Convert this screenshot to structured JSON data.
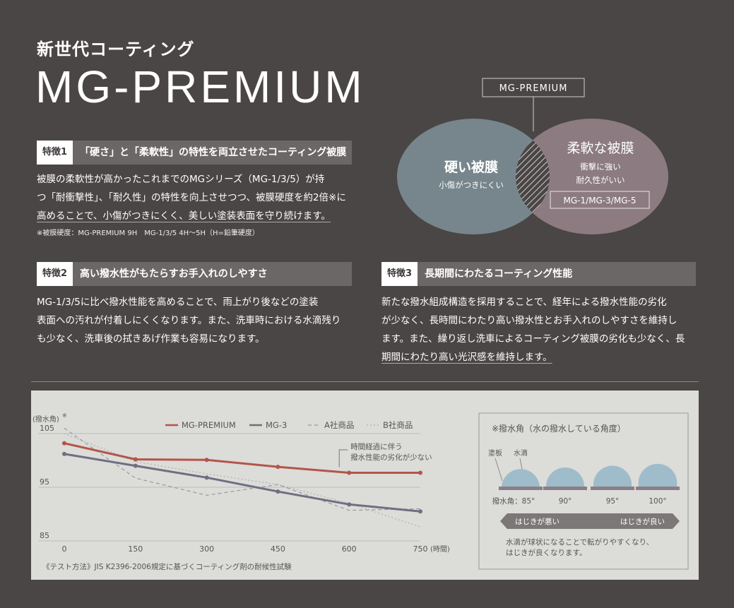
{
  "header": {
    "subtitle": "新世代コーティング",
    "brand": "MG-PREMIUM"
  },
  "features": [
    {
      "tag": "特徴1",
      "title": "「硬さ」と「柔軟性」の特性を両立させたコーティング被膜",
      "lines": [
        "被膜の柔軟性が高かったこれまでのMGシリーズ（MG-1/3/5）が持",
        "つ「耐衝撃性」、「耐久性」の特性を向上させつつ、被膜硬度を約2倍※に",
        "高めることで、小傷がつきにくく、美しい塗装表面を守り続けます。"
      ],
      "note": "※被膜硬度：MG-PREMIUM 9H　MG-1/3/5  4H〜5H（H=鉛筆硬度）"
    },
    {
      "tag": "特徴2",
      "title": "高い撥水性がもたらすお手入れのしやすさ",
      "lines": [
        "MG-1/3/5に比べ撥水性能を高めることで、雨上がり後などの塗装",
        "表面への汚れが付着しにくくなります。また、洗車時における水滴残り",
        "も少なく、洗車後の拭きあげ作業も容易になります。"
      ]
    },
    {
      "tag": "特徴3",
      "title": "長期間にわたるコーティング性能",
      "lines": [
        "新たな撥水組成構造を採用することで、経年による撥水性能の劣化",
        "が少なく、長時間にわたり高い撥水性とお手入れのしやすさを維持し",
        "ます。また、繰り返し洗車によるコーティング被膜の劣化も少なく、長",
        "期間にわたり高い光沢感を維持します。"
      ]
    }
  ],
  "diagram": {
    "label": "MG-PREMIUM",
    "hard": {
      "title": "硬い被膜",
      "sub": "小傷がつきにくい",
      "color": "#77868c"
    },
    "soft": {
      "title": "柔軟な被膜",
      "sub1": "衝撃に強い",
      "sub2": "耐久性がいい",
      "box": "MG-1/MG-3/MG-5",
      "color": "#8c7b80"
    }
  },
  "chart_data": {
    "type": "line",
    "ylabel": "(撥水角)",
    "ylabel_mark": "※",
    "xunit": "(時間)",
    "x": [
      0,
      150,
      300,
      450,
      600,
      750
    ],
    "xlim": [
      0,
      750
    ],
    "ylim": [
      85,
      105
    ],
    "yticks": [
      85,
      95,
      105
    ],
    "series": [
      {
        "name": "MG-PREMIUM",
        "color": "#b3554a",
        "style": "solid",
        "points": [
          [
            0,
            103.2
          ],
          [
            150,
            100.2
          ],
          [
            300,
            100.1
          ],
          [
            450,
            98.8
          ],
          [
            600,
            97.7
          ],
          [
            750,
            97.7
          ]
        ]
      },
      {
        "name": "MG-3",
        "color": "#6e6f80",
        "style": "solid",
        "points": [
          [
            0,
            101.2
          ],
          [
            150,
            99.0
          ],
          [
            300,
            96.8
          ],
          [
            450,
            94.2
          ],
          [
            600,
            91.8
          ],
          [
            750,
            90.5
          ]
        ]
      },
      {
        "name": "A社商品",
        "color": "#999999",
        "style": "dashed",
        "points": [
          [
            0,
            106
          ],
          [
            150,
            96.7
          ],
          [
            300,
            93.5
          ],
          [
            450,
            95.5
          ],
          [
            600,
            90.7
          ],
          [
            750,
            91.0
          ]
        ]
      },
      {
        "name": "B社商品",
        "color": "#b0b0b0",
        "style": "dotted",
        "points": [
          [
            0,
            105
          ],
          [
            150,
            99.8
          ],
          [
            300,
            97.5
          ],
          [
            450,
            95.5
          ],
          [
            600,
            92.0
          ],
          [
            750,
            87.6
          ]
        ]
      }
    ],
    "annotation": [
      "時間経過に伴う",
      "撥水性能の劣化が少ない"
    ],
    "method": "《テスト方法》JIS K2396-2006規定に基づくコーティング剤の耐候性試験"
  },
  "contact_angle": {
    "title": "※撥水角（水の撥水している角度）",
    "label_board": "塗板",
    "label_drop": "水滴",
    "prefix": "撥水角：",
    "angles": [
      "85°",
      "90°",
      "95°",
      "100°"
    ],
    "bad": "はじきが悪い",
    "good": "はじきが良い",
    "caption": [
      "水滴が球状になることで転がりやすくなり、",
      "はじきが良くなります。"
    ],
    "drop_color": "#9fbccb",
    "board_color": "#8a7f88"
  }
}
